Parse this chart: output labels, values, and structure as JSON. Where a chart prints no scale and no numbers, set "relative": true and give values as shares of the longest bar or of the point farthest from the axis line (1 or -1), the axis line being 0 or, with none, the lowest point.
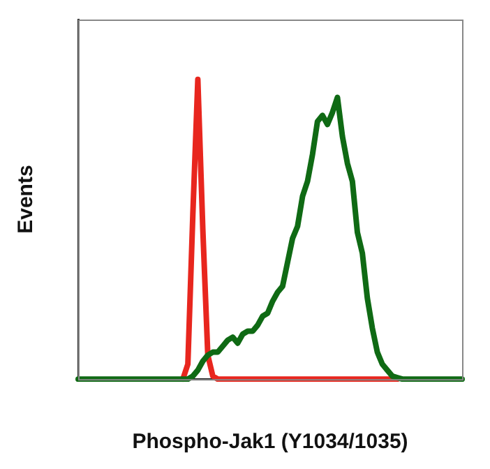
{
  "chart_data": {
    "type": "line",
    "relative": true,
    "xlabel": "Phospho-Jak1 (Y1034/1035)",
    "ylabel": "Events",
    "marker": "none",
    "line_style": "solid",
    "grid": false,
    "legend": false,
    "categories": [
      null,
      null,
      null,
      null,
      null,
      null,
      null,
      null,
      null,
      null,
      null,
      null,
      null,
      null,
      null,
      null,
      null,
      null,
      null,
      null,
      null,
      null,
      null,
      null,
      null,
      null,
      null,
      null,
      null,
      null,
      null,
      null,
      null,
      null,
      null,
      null,
      null,
      null,
      null,
      null,
      null,
      null,
      null,
      null,
      null,
      null,
      null,
      null,
      null,
      null,
      null,
      null,
      null,
      null,
      null,
      null,
      null,
      null,
      null,
      null,
      null,
      null,
      null,
      null,
      null,
      null,
      null,
      null,
      null,
      null,
      null,
      null,
      null,
      null,
      null,
      null,
      null,
      null
    ],
    "series": [
      {
        "color": "#0f6a14",
        "values": [
          0,
          0,
          0,
          0,
          0,
          0,
          0,
          0,
          0,
          0,
          0,
          0,
          0,
          0,
          0,
          0,
          0,
          0,
          0,
          0,
          0,
          0,
          0,
          0.01,
          0.03,
          0.06,
          0.08,
          0.09,
          0.09,
          0.11,
          0.13,
          0.14,
          0.12,
          0.15,
          0.16,
          0.16,
          0.18,
          0.21,
          0.22,
          0.26,
          0.29,
          0.31,
          0.39,
          0.47,
          0.51,
          0.61,
          0.66,
          0.75,
          0.86,
          0.88,
          0.85,
          0.89,
          0.94,
          0.81,
          0.72,
          0.66,
          0.49,
          0.42,
          0.27,
          0.17,
          0.09,
          0.05,
          0.03,
          0.01,
          0.005,
          0,
          0,
          0,
          0,
          0,
          0,
          0,
          0,
          0,
          0,
          0,
          0,
          0
        ]
      },
      {
        "color": "#e8261e",
        "values": [
          null,
          null,
          null,
          null,
          null,
          null,
          null,
          null,
          null,
          null,
          null,
          null,
          null,
          null,
          null,
          null,
          null,
          null,
          null,
          null,
          null,
          0,
          0.05,
          0.55,
          1,
          0.5,
          0.08,
          0.01,
          0,
          0,
          0,
          0,
          0,
          0,
          0,
          0,
          0,
          0,
          0,
          0,
          0,
          0,
          0,
          0,
          0,
          0,
          0,
          0,
          0,
          0,
          0,
          0,
          0,
          0,
          0,
          0,
          0,
          0,
          0,
          0,
          0,
          0,
          0,
          0,
          0,
          null,
          null,
          null,
          null,
          null,
          null,
          null,
          null,
          null,
          null,
          null,
          null,
          null
        ]
      }
    ]
  }
}
